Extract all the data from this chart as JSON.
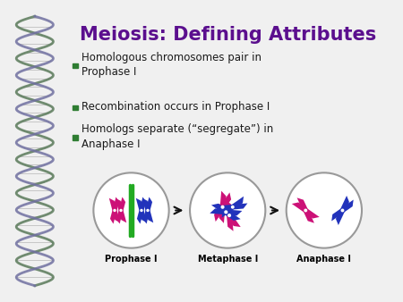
{
  "title": "Meiosis: Defining Attributes",
  "title_color": "#5B0F8E",
  "title_fontsize": 15,
  "bullet_color": "#2E7D32",
  "text_color": "#1A1A1A",
  "bg_color": "#F0F0F0",
  "bullets": [
    "Homologous chromosomes pair in\nProphase I",
    "Recombination occurs in Prophase I",
    "Homologs separate (“segregate”) in\nAnaphase I"
  ],
  "phase_labels": [
    "Prophase I",
    "Metaphase I",
    "Anaphase I"
  ],
  "dna_color1": "#5A7A5A",
  "dna_color2": "#7070A0",
  "pink": "#CC1177",
  "blue": "#2233BB",
  "green": "#22AA22",
  "arrow_color": "#111111",
  "circle_ec": "#999999",
  "circle_fc": "#FFFFFF"
}
